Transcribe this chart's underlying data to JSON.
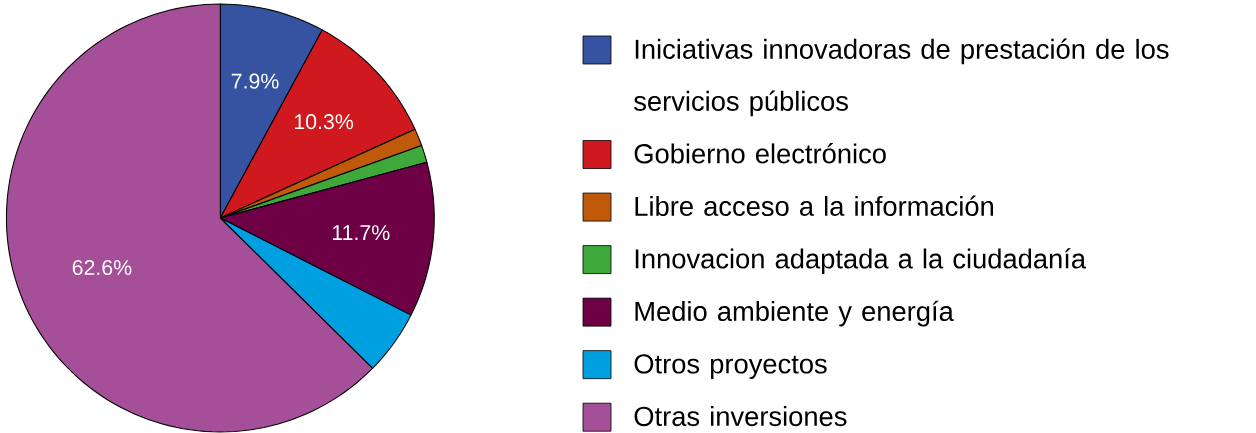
{
  "chart_data": {
    "type": "pie",
    "categories": [
      "Iniciativas innovadoras de prestación de los servicios públicos",
      "Gobierno electrónico",
      "Libre acceso a la información",
      "Innovacion adaptada a la ciudadanía",
      "Medio ambiente y energía",
      "Otros proyectos",
      "Otras inversiones"
    ],
    "values": [
      7.9,
      10.3,
      1.3,
      1.3,
      11.7,
      4.9,
      62.6
    ],
    "value_labels": [
      "7.9%",
      "10.3%",
      null,
      null,
      "11.7%",
      null,
      "62.6%"
    ],
    "colors": [
      "#3553a0",
      "#d0191e",
      "#c05a0a",
      "#3ea83a",
      "#6e0046",
      "#00a0e0",
      "#a44f97"
    ],
    "legend": "right"
  }
}
